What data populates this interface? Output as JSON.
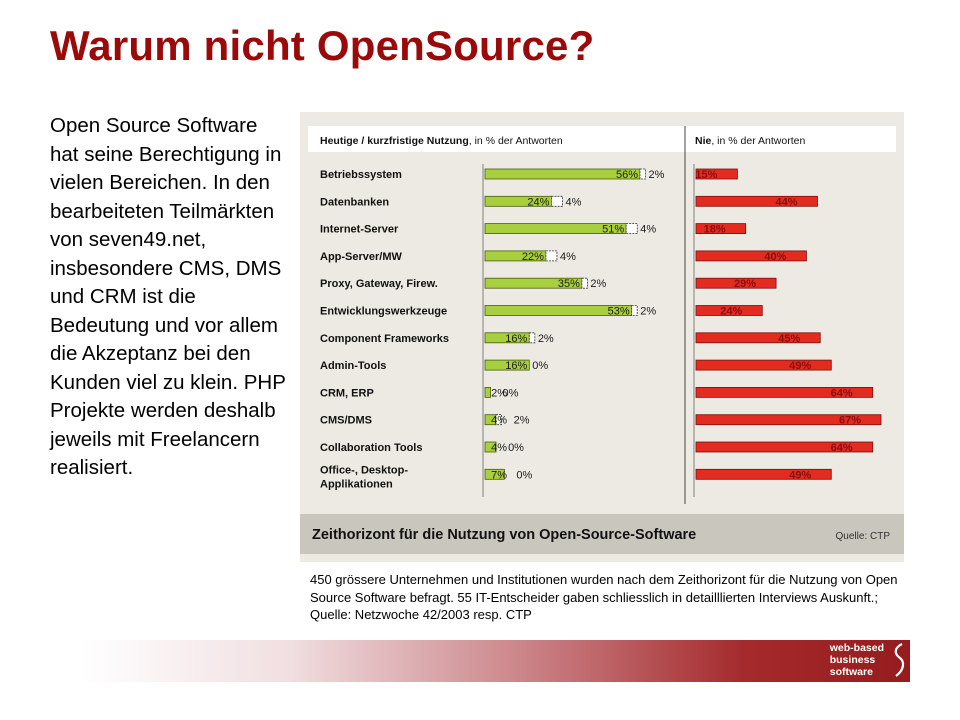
{
  "slide": {
    "title": "Warum nicht OpenSource?",
    "body": "Open Source Software hat seine Berechtigung in vielen Bereichen. In den bearbeiteten Teilmärkten von seven49.net, insbesondere CMS, DMS und CRM ist die Bedeutung und vor allem die Akzeptanz bei den Kunden viel zu klein. PHP Projekte werden deshalb jeweils mit Freelancern realisiert.",
    "caption": "450 grössere Unternehmen und Institutionen wurden nach dem Zeithorizont für die Nutzung von Open Source Software befragt. 55 IT-Entscheider gaben schliesslich in detailllierten Interviews Auskunft.; Quelle: Netzwoche 42/2003 resp. CTP"
  },
  "footer": {
    "brand_line1": "web-based",
    "brand_line2": "business",
    "brand_line3": "software"
  },
  "chart_data": {
    "type": "bar",
    "title": "Zeithorizont für die Nutzung von Open-Source-Software",
    "source": "Quelle: CTP",
    "left_header_bold": "Heutige / kurzfristige Nutzung",
    "left_header_rest": ", in % der Antworten",
    "right_header_bold": "Nie",
    "right_header_rest": ", in % der Antworten",
    "categories": [
      "Betriebssystem",
      "Datenbanken",
      "Internet-Server",
      "App-Server/MW",
      "Proxy, Gateway, Firew.",
      "Entwicklungswerkzeuge",
      "Component Frameworks",
      "Admin-Tools",
      "CRM, ERP",
      "CMS/DMS",
      "Collaboration Tools",
      "Office-, Desktop-"
    ],
    "category_line2": [
      "",
      "",
      "",
      "",
      "",
      "",
      "",
      "",
      "",
      "",
      "",
      "Applikationen"
    ],
    "series": [
      {
        "name": "Heutige Nutzung",
        "values": [
          56,
          24,
          51,
          22,
          35,
          53,
          16,
          16,
          2,
          4,
          4,
          7
        ],
        "labels": [
          "56%",
          "24%",
          "51%",
          "22%",
          "35%",
          "53%",
          "16%",
          "16%",
          "2%",
          "4%",
          "4%",
          "7%"
        ]
      },
      {
        "name": "Kurzfristige Nutzung",
        "values": [
          2,
          4,
          4,
          4,
          2,
          2,
          2,
          0,
          0,
          2,
          0,
          0
        ],
        "labels": [
          "2%",
          "4%",
          "4%",
          "4%",
          "2%",
          "2%",
          "2%",
          "0%",
          "0%",
          "2%",
          "0%",
          "0%"
        ]
      },
      {
        "name": "Nie",
        "values": [
          15,
          44,
          18,
          40,
          29,
          24,
          45,
          49,
          64,
          67,
          64,
          49
        ],
        "labels": [
          "15%",
          "44%",
          "18%",
          "40%",
          "29%",
          "24%",
          "45%",
          "49%",
          "64%",
          "67%",
          "64%",
          "49%"
        ]
      }
    ],
    "colors": {
      "now": "#a8cf3d",
      "short_term": "#ffffff",
      "never": "#e32b20",
      "background": "#eceae2",
      "title_bar": "#c9c6bd"
    }
  }
}
